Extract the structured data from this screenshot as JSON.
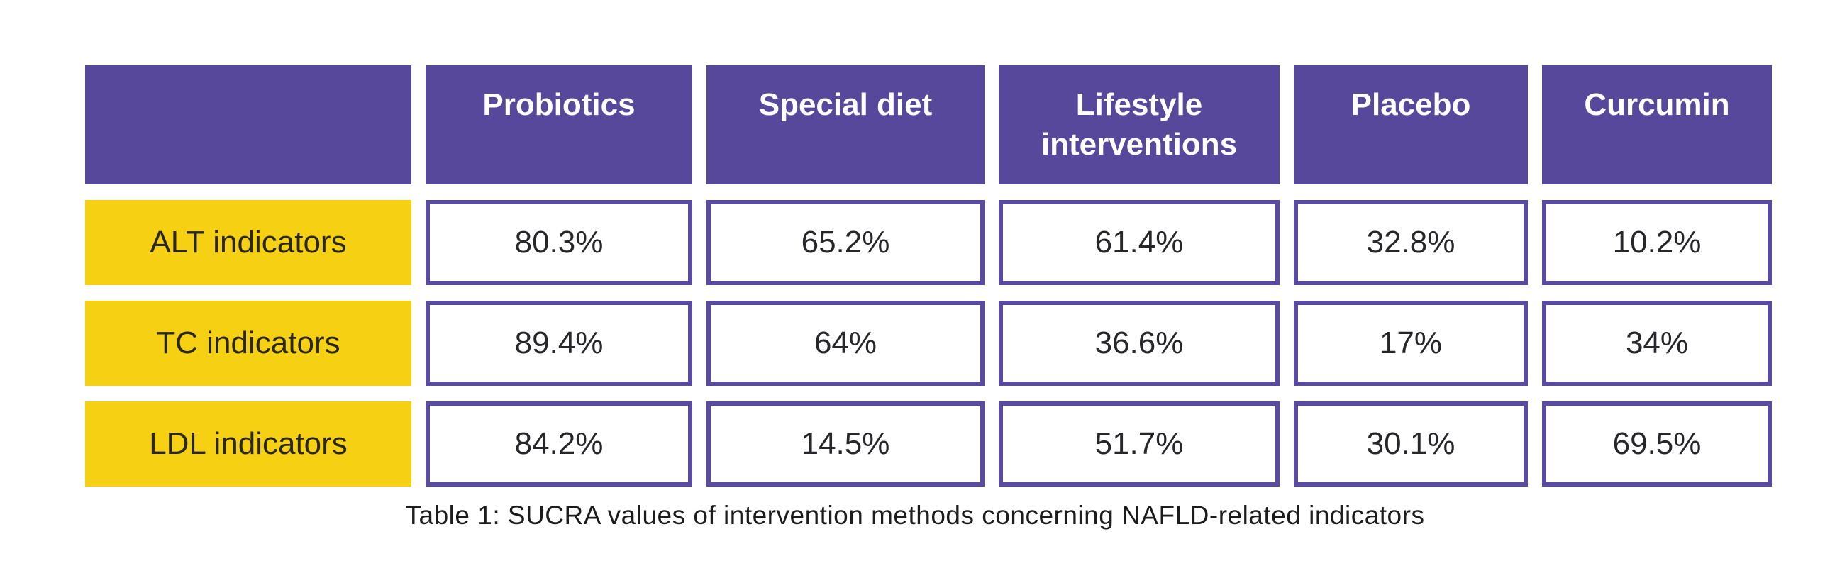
{
  "table": {
    "columns": [
      "Probiotics",
      "Special diet",
      "Lifestyle interventions",
      "Placebo",
      "Curcumin"
    ],
    "rows": [
      {
        "label": "ALT indicators",
        "values": [
          "80.3%",
          "65.2%",
          "61.4%",
          "32.8%",
          "10.2%"
        ]
      },
      {
        "label": "TC indicators",
        "values": [
          "89.4%",
          "64%",
          "36.6%",
          "17%",
          "34%"
        ]
      },
      {
        "label": "LDL indicators",
        "values": [
          "84.2%",
          "14.5%",
          "51.7%",
          "30.1%",
          "69.5%"
        ]
      }
    ],
    "caption": "Table 1: SUCRA values of intervention methods concerning NAFLD-related indicators"
  },
  "colors": {
    "page_bg": "#FFFFFF",
    "header_bg": "#57489B",
    "header_text": "#FFFFFF",
    "label_bg": "#F5D013",
    "label_text": "#2A2620",
    "value_border": "#5A4BA0",
    "value_text": "#26262B",
    "caption_text": "#1C1C1C"
  },
  "chart_data": {
    "type": "table",
    "title": "Table 1: SUCRA values of intervention methods concerning NAFLD-related indicators",
    "columns": [
      "Probiotics",
      "Special diet",
      "Lifestyle interventions",
      "Placebo",
      "Curcumin"
    ],
    "row_labels": [
      "ALT indicators",
      "TC indicators",
      "LDL indicators"
    ],
    "values_percent": [
      [
        80.3,
        65.2,
        61.4,
        32.8,
        10.2
      ],
      [
        89.4,
        64.0,
        36.6,
        17.0,
        34.0
      ],
      [
        84.2,
        14.5,
        51.7,
        30.1,
        69.5
      ]
    ],
    "legend_position": "none",
    "grid": false
  }
}
